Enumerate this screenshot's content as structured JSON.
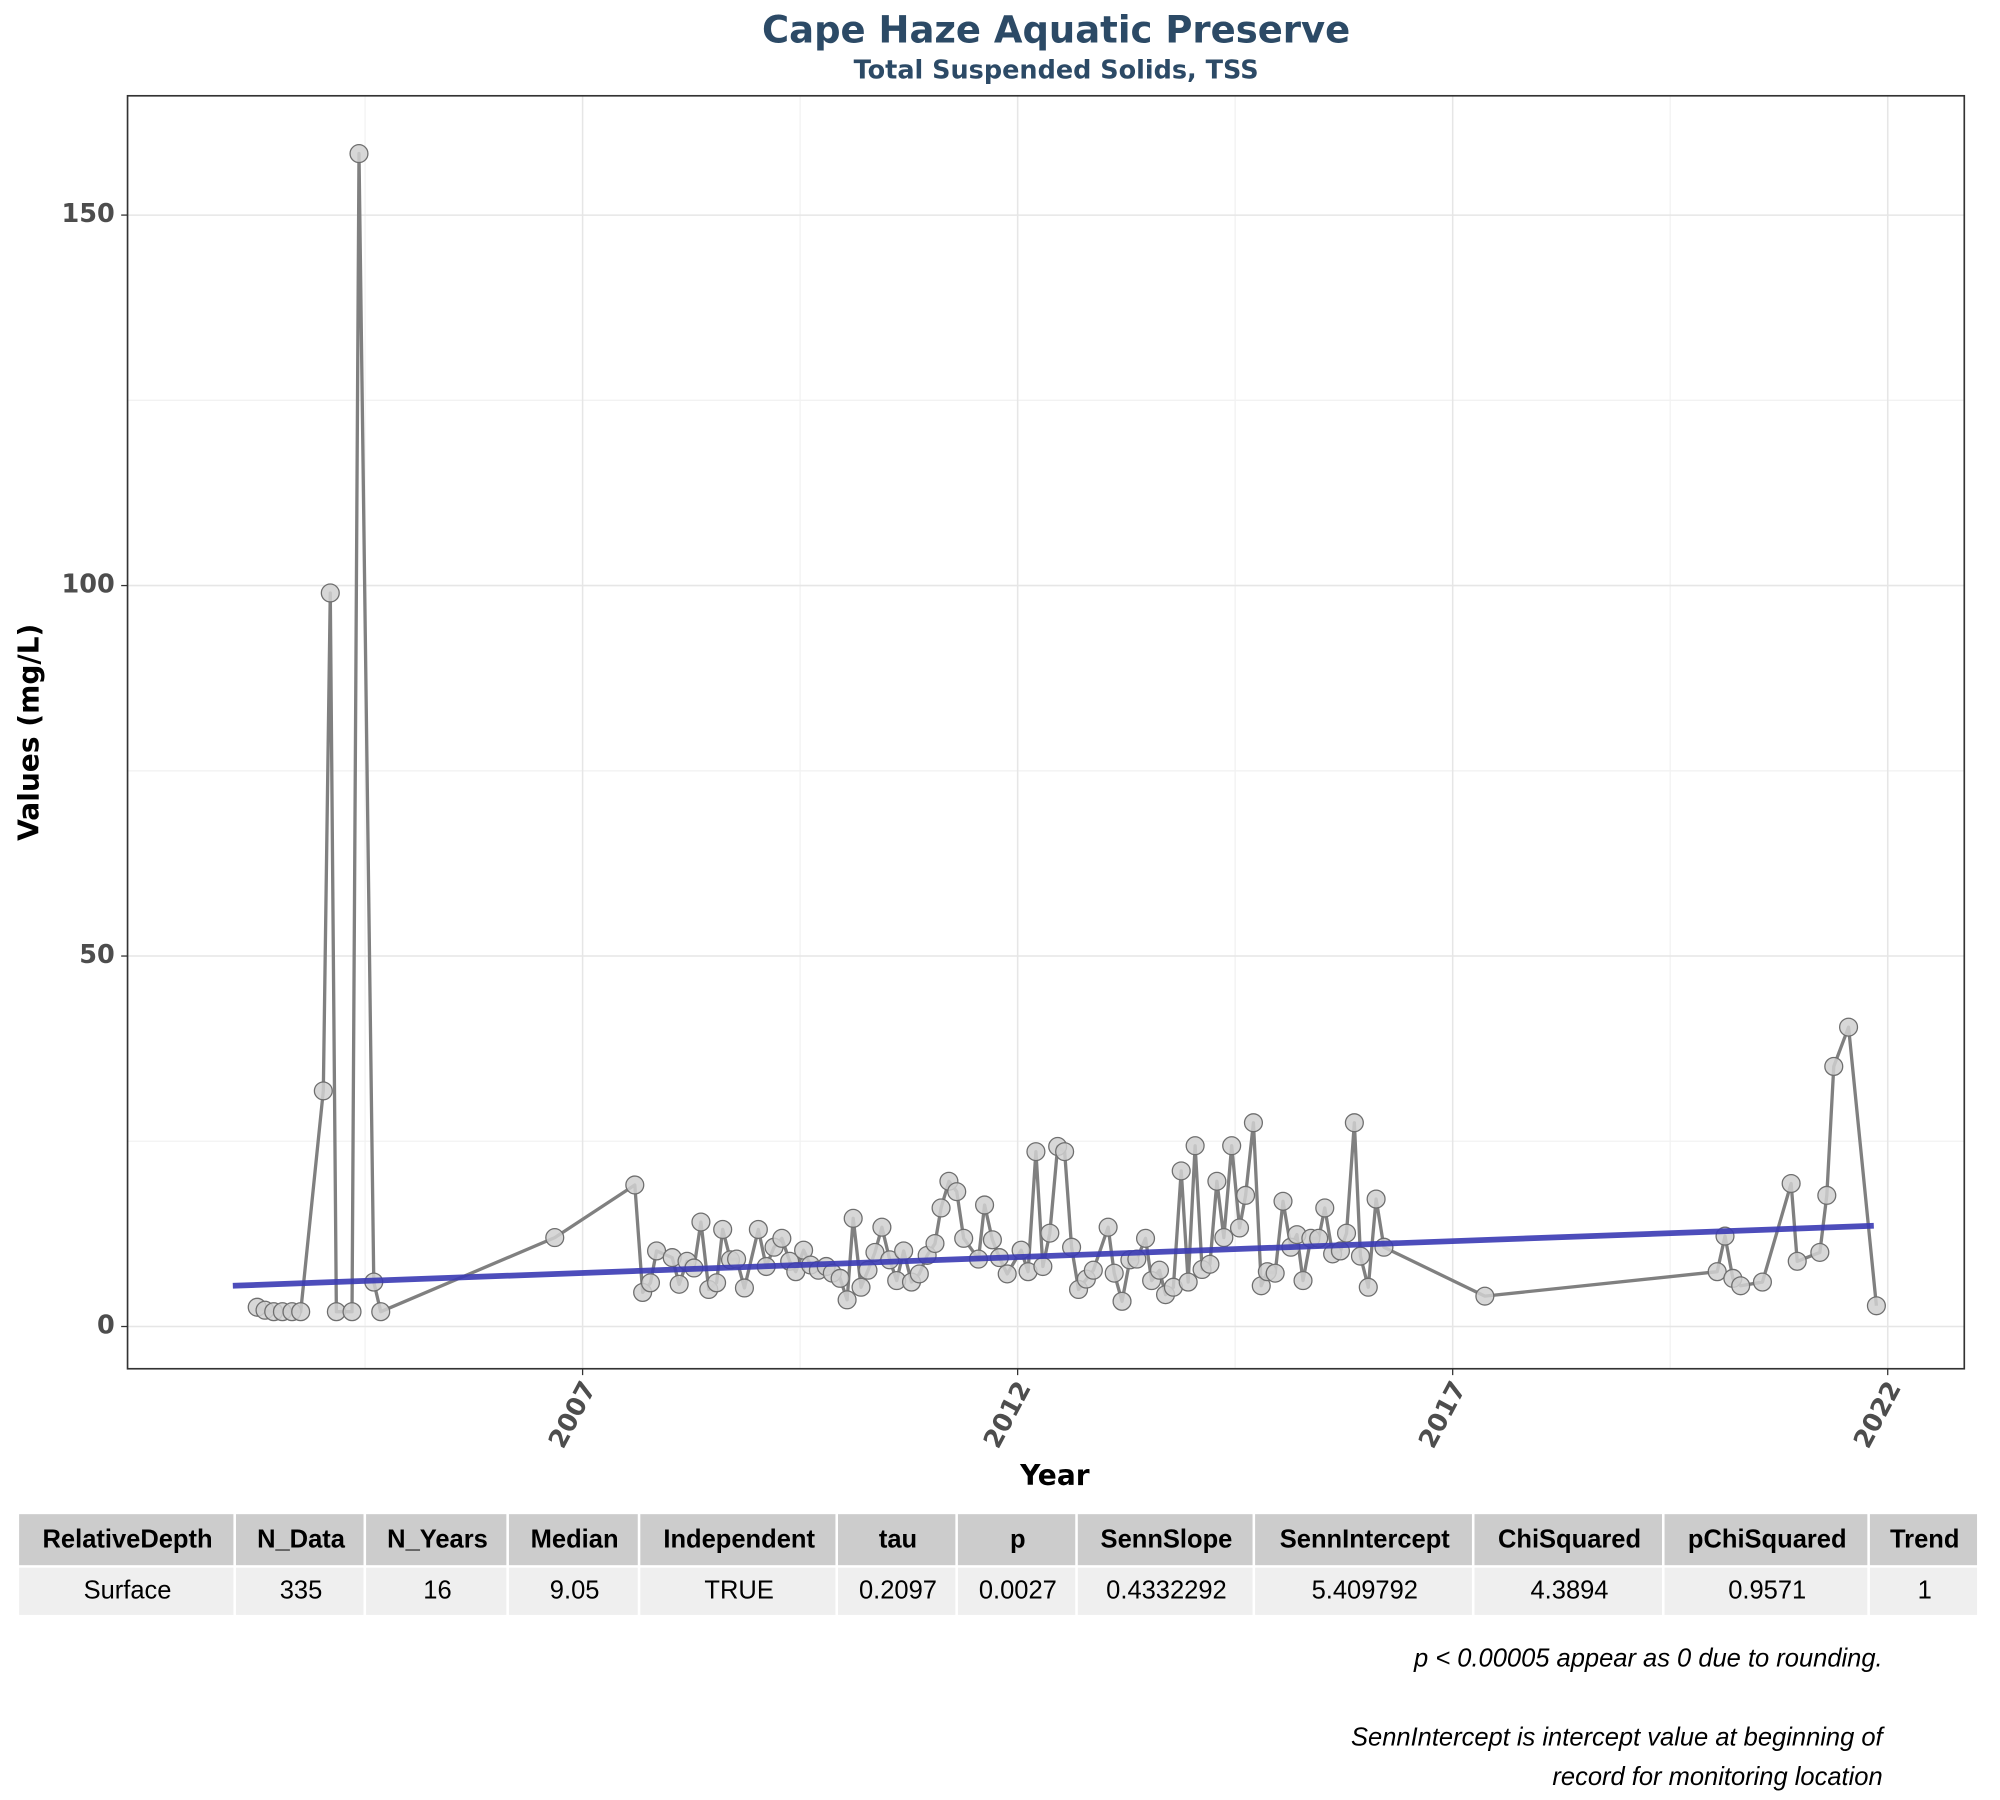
{
  "chart_data": {
    "type": "line",
    "title": "Cape Haze Aquatic Preserve",
    "subtitle": "Total Suspended Solids, TSS",
    "x_label": "Year",
    "y_label": "Values (mg/L)",
    "xlim": [
      2001.77,
      2022.88
    ],
    "ylim": [
      -5.7,
      166.1
    ],
    "xticks": [
      2007,
      2012,
      2017,
      2022
    ],
    "yticks": [
      0,
      50,
      100,
      150
    ],
    "grid": true,
    "series": [
      {
        "color": "#808080",
        "markers": true,
        "x": [
          2003.26,
          2003.35,
          2003.45,
          2003.55,
          2003.66,
          2003.76,
          2004.02,
          2004.1,
          2004.17,
          2004.35,
          2004.43,
          2004.6,
          2004.68,
          2006.68,
          2007.6,
          2007.69,
          2007.78,
          2007.85,
          2008.03,
          2008.11,
          2008.2,
          2008.28,
          2008.36,
          2008.45,
          2008.54,
          2008.61,
          2008.7,
          2008.77,
          2008.86,
          2009.02,
          2009.11,
          2009.2,
          2009.29,
          2009.38,
          2009.45,
          2009.54,
          2009.62,
          2009.71,
          2009.8,
          2009.87,
          2009.96,
          2010.04,
          2010.11,
          2010.2,
          2010.28,
          2010.36,
          2010.44,
          2010.53,
          2010.61,
          2010.69,
          2010.78,
          2010.87,
          2010.96,
          2011.05,
          2011.12,
          2011.21,
          2011.3,
          2011.38,
          2011.55,
          2011.62,
          2011.71,
          2011.79,
          2011.88,
          2012.04,
          2012.12,
          2012.21,
          2012.29,
          2012.37,
          2012.46,
          2012.54,
          2012.62,
          2012.7,
          2012.79,
          2012.87,
          2013.04,
          2013.11,
          2013.2,
          2013.29,
          2013.37,
          2013.47,
          2013.54,
          2013.63,
          2013.7,
          2013.79,
          2013.88,
          2013.96,
          2014.04,
          2014.12,
          2014.21,
          2014.29,
          2014.37,
          2014.46,
          2014.55,
          2014.62,
          2014.71,
          2014.8,
          2014.87,
          2014.96,
          2015.05,
          2015.14,
          2015.21,
          2015.28,
          2015.37,
          2015.46,
          2015.53,
          2015.62,
          2015.71,
          2015.78,
          2015.87,
          2015.94,
          2016.03,
          2016.12,
          2016.21,
          2017.37,
          2020.04,
          2020.13,
          2020.22,
          2020.31,
          2020.56,
          2020.89,
          2020.96,
          2021.22,
          2021.3,
          2021.38,
          2021.55,
          2021.87
        ],
        "values": [
          2.6,
          2.2,
          2,
          2,
          2,
          2,
          31.8,
          99,
          2,
          2,
          158.3,
          6,
          2,
          12,
          19.1,
          4.6,
          5.9,
          10.2,
          9.3,
          5.7,
          8.8,
          7.9,
          14.1,
          5,
          5.9,
          13.1,
          9,
          9.1,
          5.2,
          13.1,
          8.1,
          10.7,
          11.9,
          8.8,
          7.4,
          10.3,
          8.3,
          7.6,
          8.1,
          7.2,
          6.5,
          3.6,
          14.6,
          5.3,
          7.6,
          10,
          13.4,
          9,
          6.2,
          10.2,
          6,
          7.1,
          9.6,
          11.2,
          16,
          19.6,
          18.2,
          11.9,
          9.1,
          16.4,
          11.7,
          9.3,
          7.1,
          10.3,
          7.4,
          23.6,
          8.1,
          12.6,
          24.3,
          23.6,
          10.7,
          5,
          6.4,
          7.6,
          13.4,
          7.2,
          3.4,
          9,
          9.1,
          11.9,
          6.2,
          7.6,
          4.3,
          5.3,
          21,
          6,
          24.4,
          7.7,
          8.4,
          19.6,
          12,
          24.4,
          13.3,
          17.7,
          27.5,
          5.5,
          7.4,
          7.2,
          16.9,
          10.7,
          12.4,
          6.2,
          11.9,
          11.9,
          16,
          9.8,
          10.2,
          12.6,
          27.5,
          9.5,
          5.3,
          17.2,
          10.7,
          4.1,
          7.4,
          12.2,
          6.5,
          5.5,
          6,
          19.3,
          8.8,
          10,
          17.7,
          35.1,
          40.4,
          2.8
        ]
      },
      {
        "color": "#3a3ab4",
        "markers": false,
        "x": [
          2002.98,
          2021.84
        ],
        "values": [
          5.5,
          13.6
        ]
      }
    ]
  },
  "table": {
    "columns": [
      "RelativeDepth",
      "N_Data",
      "N_Years",
      "Median",
      "Independent",
      "tau",
      "p",
      "SennSlope",
      "SennIntercept",
      "ChiSquared",
      "pChiSquared",
      "Trend"
    ],
    "rows": [
      [
        "Surface",
        "335",
        "16",
        "9.05",
        "TRUE",
        "0.2097",
        "0.0027",
        "0.4332292",
        "5.409792",
        "4.3894",
        "0.9571",
        "1"
      ]
    ]
  },
  "notes": [
    "p < 0.00005 appear as 0 due to rounding.",
    "SennIntercept is intercept value at beginning of",
    "record for monitoring location"
  ]
}
